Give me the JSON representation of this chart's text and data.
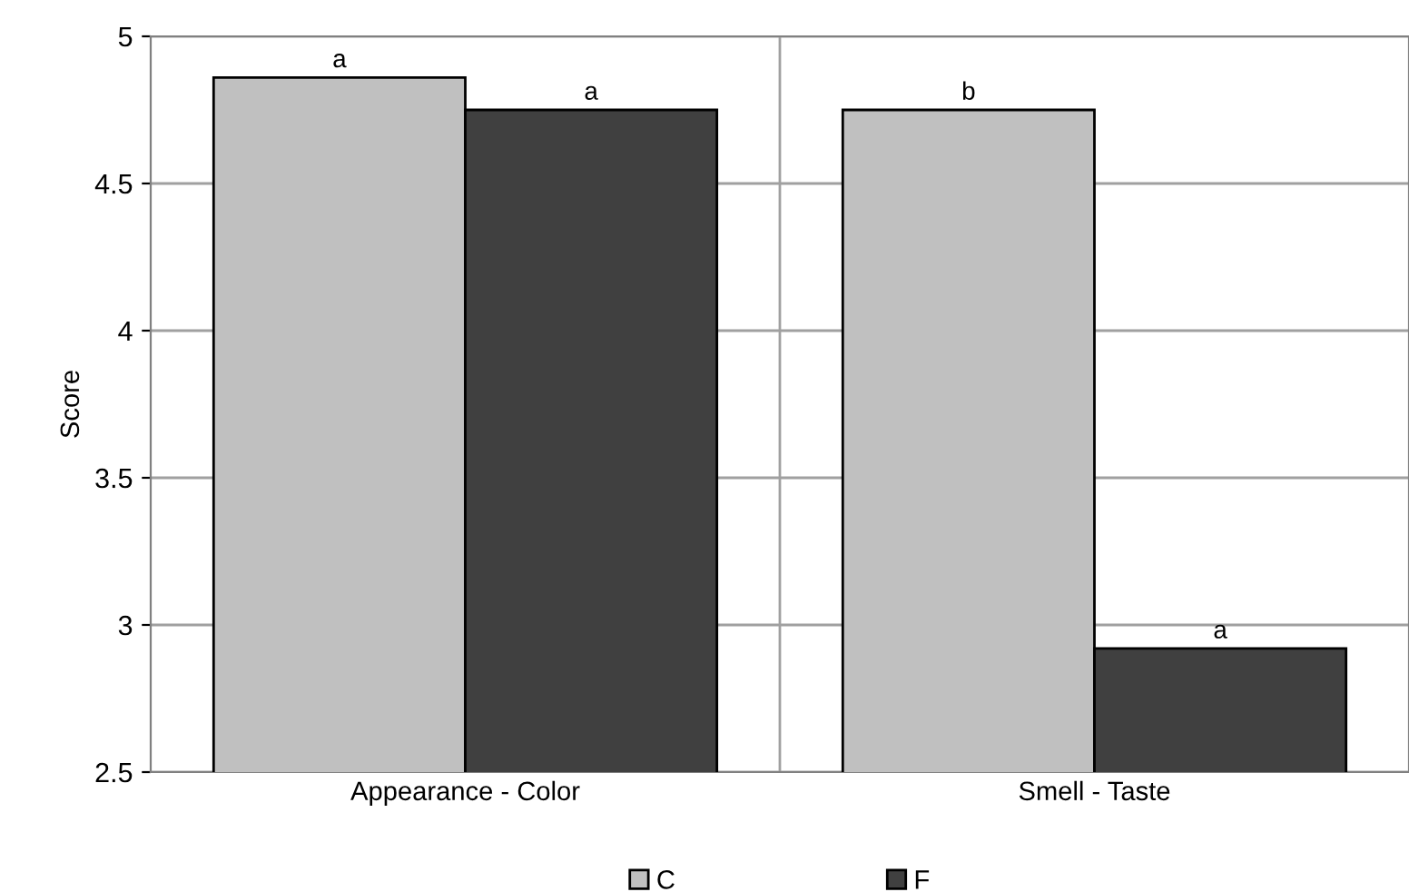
{
  "chart_data": {
    "type": "bar",
    "ylabel": "Score",
    "categories": [
      "Appearance - Color",
      "Smell - Taste"
    ],
    "series": [
      {
        "name": "C",
        "color": "#c0c0c0",
        "values": [
          4.86,
          4.75
        ]
      },
      {
        "name": "F",
        "color": "#404040",
        "values": [
          4.75,
          2.92
        ]
      }
    ],
    "ylim": [
      2.5,
      5
    ],
    "yticks": [
      2.5,
      3,
      3.5,
      4,
      4.5,
      5
    ],
    "annotations": [
      "a",
      "a",
      "b",
      "a"
    ],
    "grid": true,
    "legend": "bottom"
  }
}
